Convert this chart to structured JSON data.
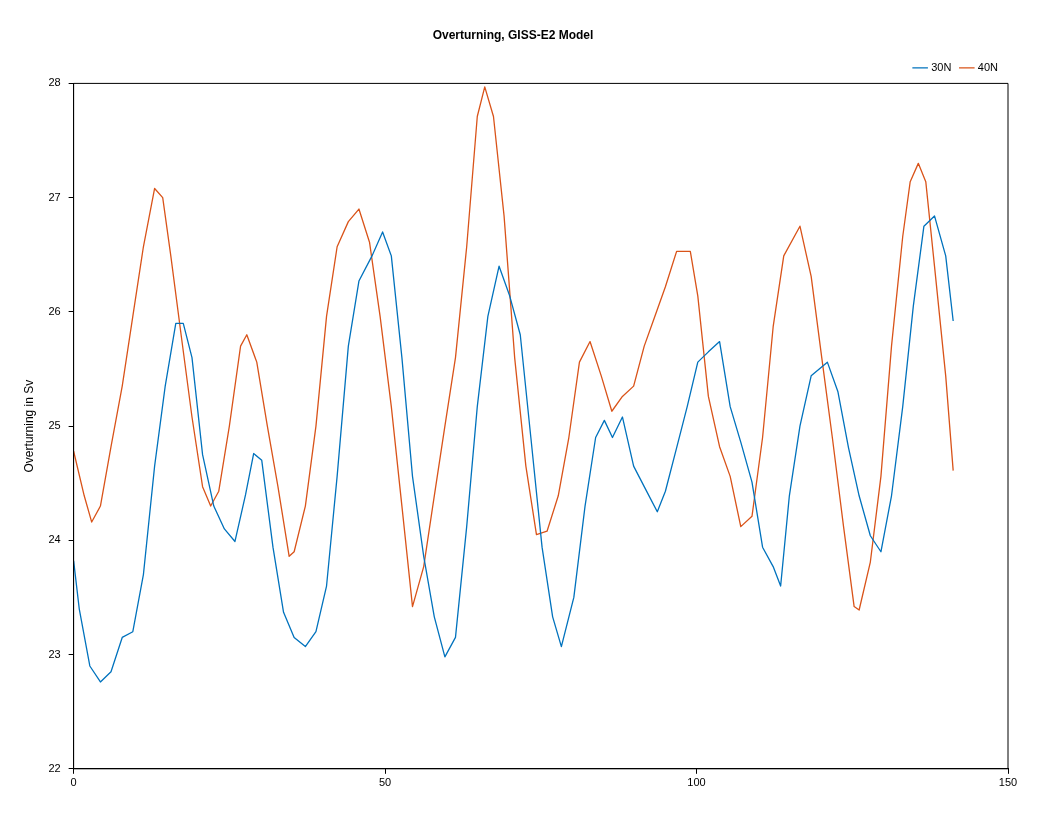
{
  "chart_data": {
    "type": "line",
    "title": "Overturning, GISS-E2 Model",
    "ylabel": "Overturning in Sv",
    "xlim": [
      0,
      150
    ],
    "xticks": [
      0,
      50,
      100,
      150
    ],
    "ylim": [
      22,
      28
    ],
    "yticks": [
      22,
      23,
      24,
      25,
      26,
      27,
      28
    ],
    "grid": false,
    "legend": "top right",
    "marker": "none",
    "line_style": "solid",
    "series": [
      {
        "name": "30N",
        "color": "#0072bd",
        "x": [
          0,
          0.9,
          2.6,
          4.3,
          6,
          7.8,
          9.5,
          11.2,
          13,
          14.7,
          16.4,
          17.6,
          19,
          20.7,
          22.5,
          24.2,
          25.9,
          27.6,
          28.9,
          30.2,
          32,
          33.7,
          35.4,
          37.2,
          38.9,
          40.6,
          42.3,
          44.1,
          45.8,
          47.9,
          49.6,
          51,
          52.7,
          54.4,
          56.2,
          57.9,
          59.6,
          61.3,
          63.1,
          64.8,
          66.5,
          68.3,
          70,
          71.7,
          73.4,
          75.2,
          76.9,
          78.3,
          80.3,
          82.1,
          83.8,
          85.2,
          86.5,
          88.1,
          89.9,
          91.6,
          93.7,
          95,
          96.8,
          98.5,
          100.2,
          101.9,
          103.7,
          105.4,
          107.1,
          108.9,
          110.6,
          112.3,
          113.5,
          114.9,
          116.6,
          118.4,
          121,
          122.7,
          124.4,
          126.1,
          127.9,
          129.6,
          131.3,
          133.1,
          134.8,
          136.5,
          138.2,
          140,
          141.2
        ],
        "values": [
          23.82,
          23.4,
          22.9,
          22.76,
          22.85,
          23.15,
          23.2,
          23.7,
          24.65,
          25.35,
          25.9,
          25.9,
          25.6,
          24.75,
          24.3,
          24.1,
          23.99,
          24.4,
          24.76,
          24.7,
          23.94,
          23.37,
          23.15,
          23.07,
          23.2,
          23.6,
          24.56,
          25.7,
          26.27,
          26.49,
          26.7,
          26.49,
          25.6,
          24.56,
          23.86,
          23.33,
          22.98,
          23.15,
          24.12,
          25.17,
          25.96,
          26.4,
          26.14,
          25.8,
          24.9,
          23.94,
          23.33,
          23.07,
          23.5,
          24.3,
          24.9,
          25.05,
          24.9,
          25.08,
          24.65,
          24.47,
          24.25,
          24.43,
          24.81,
          25.17,
          25.56,
          25.65,
          25.74,
          25.17,
          24.86,
          24.51,
          23.94,
          23.77,
          23.6,
          24.39,
          25.0,
          25.44,
          25.56,
          25.3,
          24.81,
          24.39,
          24.04,
          23.9,
          24.39,
          25.17,
          26.05,
          26.75,
          26.84,
          26.49,
          25.92
        ]
      },
      {
        "name": "40N",
        "color": "#d95319",
        "x": [
          0,
          1.7,
          2.9,
          4.3,
          6,
          7.8,
          9.5,
          11.2,
          13,
          14.3,
          15.6,
          17.3,
          19,
          20.7,
          22,
          23.3,
          25,
          26.8,
          27.8,
          29.4,
          31.1,
          32.8,
          34.6,
          35.4,
          37.2,
          38.9,
          40.6,
          42.3,
          44.1,
          45.8,
          47.5,
          49.2,
          51,
          52.7,
          54.4,
          56.2,
          57.9,
          59.6,
          61.3,
          63.1,
          64.8,
          66,
          67.4,
          69.1,
          70.8,
          72.6,
          74.3,
          76,
          77.8,
          79.5,
          81.2,
          82.9,
          84.7,
          86.4,
          88.1,
          89.9,
          91.6,
          93.3,
          95,
          96.8,
          99,
          100.2,
          101.9,
          103.7,
          105.4,
          107.1,
          108.9,
          110.6,
          112.3,
          114,
          116.6,
          118.4,
          120.1,
          121.8,
          123.6,
          125.3,
          126.1,
          127.9,
          129.6,
          131.3,
          133.1,
          134.3,
          135.6,
          136.8,
          138.2,
          140,
          141.2
        ],
        "values": [
          24.78,
          24.39,
          24.16,
          24.3,
          24.82,
          25.35,
          25.96,
          26.57,
          27.08,
          27.0,
          26.49,
          25.78,
          25.08,
          24.47,
          24.3,
          24.43,
          25.0,
          25.7,
          25.8,
          25.56,
          25.0,
          24.47,
          23.86,
          23.9,
          24.3,
          25.0,
          25.96,
          26.57,
          26.79,
          26.9,
          26.61,
          25.96,
          25.17,
          24.3,
          23.42,
          23.77,
          24.39,
          25.0,
          25.6,
          26.57,
          27.71,
          27.97,
          27.71,
          26.84,
          25.6,
          24.65,
          24.05,
          24.08,
          24.39,
          24.9,
          25.56,
          25.74,
          25.44,
          25.13,
          25.26,
          25.35,
          25.7,
          25.96,
          26.22,
          26.53,
          26.53,
          26.14,
          25.26,
          24.82,
          24.56,
          24.12,
          24.21,
          24.9,
          25.87,
          26.49,
          26.75,
          26.31,
          25.6,
          24.9,
          24.12,
          23.42,
          23.39,
          23.81,
          24.56,
          25.7,
          26.66,
          27.14,
          27.3,
          27.14,
          26.4,
          25.44,
          24.61
        ]
      }
    ]
  }
}
